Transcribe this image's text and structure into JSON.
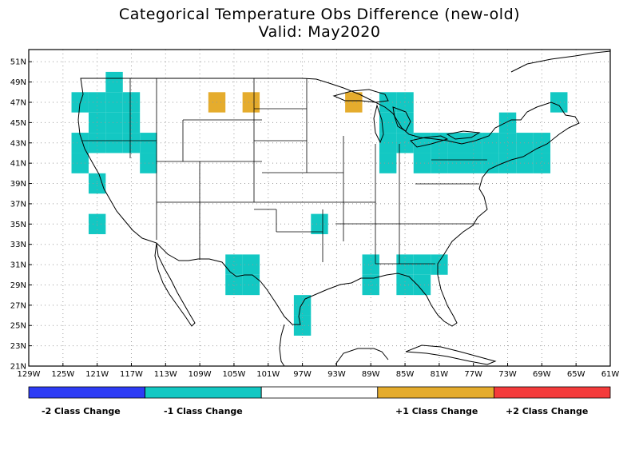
{
  "title_line1": "Categorical Temperature Obs Difference (new-old)",
  "title_line2": "Valid: May2020",
  "lon_ticks": [
    "129W",
    "125W",
    "121W",
    "117W",
    "113W",
    "109W",
    "105W",
    "101W",
    "97W",
    "93W",
    "89W",
    "85W",
    "81W",
    "77W",
    "73W",
    "69W",
    "65W",
    "61W"
  ],
  "lat_ticks": [
    "51N",
    "49N",
    "47N",
    "45N",
    "43N",
    "41N",
    "39N",
    "37N",
    "35N",
    "33N",
    "31N",
    "29N",
    "27N",
    "25N",
    "23N",
    "21N"
  ],
  "legend": [
    {
      "label": "-2 Class Change",
      "color": "#2d3cf5"
    },
    {
      "label": "-1 Class Change",
      "color": "#13c8c3"
    },
    {
      "label": "",
      "color": "#ffffff"
    },
    {
      "label": "+1 Class Change",
      "color": "#e5ac2d"
    },
    {
      "label": "+2 Class Change",
      "color": "#f43b3b"
    }
  ],
  "cells": [
    {
      "lon": -123,
      "lat": 47,
      "change": -1
    },
    {
      "lon": -121,
      "lat": 47,
      "change": -1
    },
    {
      "lon": -119,
      "lat": 47,
      "change": -1
    },
    {
      "lon": -117,
      "lat": 47,
      "change": -1
    },
    {
      "lon": -119,
      "lat": 49,
      "change": -1
    },
    {
      "lon": -121,
      "lat": 45,
      "change": -1
    },
    {
      "lon": -119,
      "lat": 45,
      "change": -1
    },
    {
      "lon": -117,
      "lat": 45,
      "change": -1
    },
    {
      "lon": -121,
      "lat": 43,
      "change": -1
    },
    {
      "lon": -119,
      "lat": 43,
      "change": -1
    },
    {
      "lon": -117,
      "lat": 43,
      "change": -1
    },
    {
      "lon": -123,
      "lat": 43,
      "change": -1
    },
    {
      "lon": -123,
      "lat": 41,
      "change": -1
    },
    {
      "lon": -115,
      "lat": 43,
      "change": -1
    },
    {
      "lon": -115,
      "lat": 41,
      "change": -1
    },
    {
      "lon": -121,
      "lat": 39,
      "change": -1
    },
    {
      "lon": -121,
      "lat": 35,
      "change": -1
    },
    {
      "lon": -107,
      "lat": 47,
      "change": 1
    },
    {
      "lon": -103,
      "lat": 47,
      "change": 1
    },
    {
      "lon": -91,
      "lat": 47,
      "change": 1
    },
    {
      "lon": -87,
      "lat": 47,
      "change": -1
    },
    {
      "lon": -85,
      "lat": 47,
      "change": -1
    },
    {
      "lon": -87,
      "lat": 45,
      "change": -1
    },
    {
      "lon": -85,
      "lat": 45,
      "change": -1
    },
    {
      "lon": -85,
      "lat": 43,
      "change": -1
    },
    {
      "lon": -87,
      "lat": 43,
      "change": -1
    },
    {
      "lon": -87,
      "lat": 41,
      "change": -1
    },
    {
      "lon": -83,
      "lat": 43,
      "change": -1
    },
    {
      "lon": -81,
      "lat": 43,
      "change": -1
    },
    {
      "lon": -79,
      "lat": 43,
      "change": -1
    },
    {
      "lon": -77,
      "lat": 43,
      "change": -1
    },
    {
      "lon": -75,
      "lat": 43,
      "change": -1
    },
    {
      "lon": -83,
      "lat": 41,
      "change": -1
    },
    {
      "lon": -81,
      "lat": 41,
      "change": -1
    },
    {
      "lon": -79,
      "lat": 41,
      "change": -1
    },
    {
      "lon": -77,
      "lat": 41,
      "change": -1
    },
    {
      "lon": -75,
      "lat": 41,
      "change": -1
    },
    {
      "lon": -73,
      "lat": 45,
      "change": -1
    },
    {
      "lon": -73,
      "lat": 43,
      "change": -1
    },
    {
      "lon": -73,
      "lat": 41,
      "change": -1
    },
    {
      "lon": -71,
      "lat": 43,
      "change": -1
    },
    {
      "lon": -69,
      "lat": 43,
      "change": -1
    },
    {
      "lon": -71,
      "lat": 41,
      "change": -1
    },
    {
      "lon": -69,
      "lat": 41,
      "change": -1
    },
    {
      "lon": -67,
      "lat": 47,
      "change": -1
    },
    {
      "lon": -95,
      "lat": 35,
      "change": -1
    },
    {
      "lon": -105,
      "lat": 31,
      "change": -1
    },
    {
      "lon": -103,
      "lat": 31,
      "change": -1
    },
    {
      "lon": -105,
      "lat": 29,
      "change": -1
    },
    {
      "lon": -103,
      "lat": 29,
      "change": -1
    },
    {
      "lon": -97,
      "lat": 27,
      "change": -1
    },
    {
      "lon": -97,
      "lat": 25,
      "change": -1
    },
    {
      "lon": -89,
      "lat": 31,
      "change": -1
    },
    {
      "lon": -89,
      "lat": 29,
      "change": -1
    },
    {
      "lon": -85,
      "lat": 31,
      "change": -1
    },
    {
      "lon": -83,
      "lat": 31,
      "change": -1
    },
    {
      "lon": -81,
      "lat": 31,
      "change": -1
    },
    {
      "lon": -85,
      "lat": 29,
      "change": -1
    },
    {
      "lon": -83,
      "lat": 29,
      "change": -1
    }
  ]
}
